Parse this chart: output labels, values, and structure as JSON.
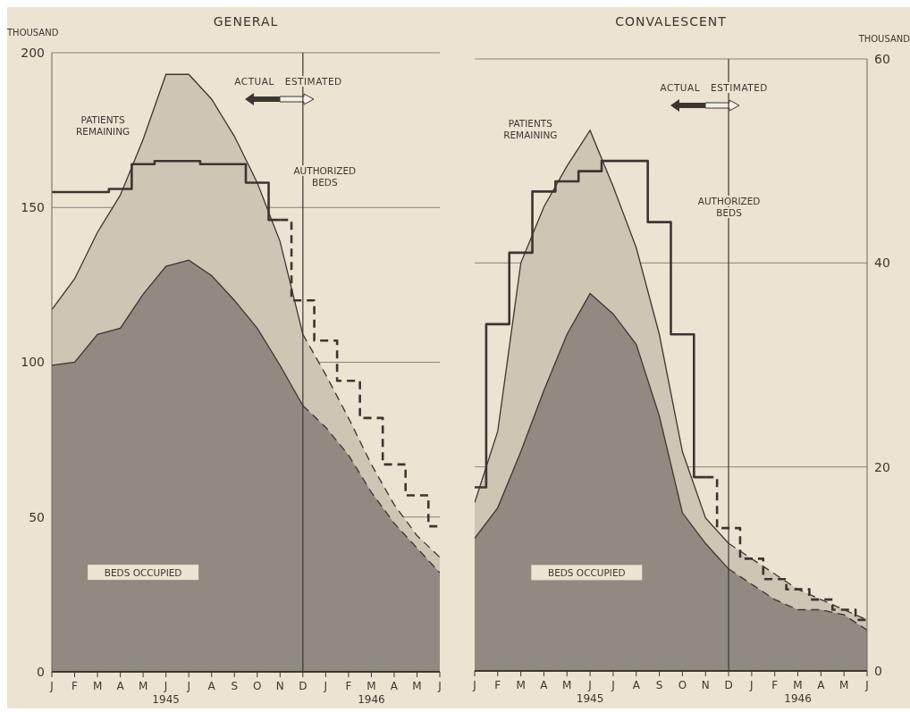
{
  "chart_data": [
    {
      "type": "area",
      "title": "GENERAL",
      "ylabel": "THOUSAND",
      "x": [
        "1945-01",
        "1945-02",
        "1945-03",
        "1945-04",
        "1945-05",
        "1945-06",
        "1945-07",
        "1945-08",
        "1945-09",
        "1945-10",
        "1945-11",
        "1945-12",
        "1946-01",
        "1946-02",
        "1946-03",
        "1946-04",
        "1946-05",
        "1946-06"
      ],
      "xlim": [
        "1945-01",
        "1946-06"
      ],
      "xticks": [
        {
          "value": "1945-01",
          "label": "J"
        },
        {
          "value": "1945-02",
          "label": "F"
        },
        {
          "value": "1945-03",
          "label": "M"
        },
        {
          "value": "1945-04",
          "label": "A"
        },
        {
          "value": "1945-05",
          "label": "M"
        },
        {
          "value": "1945-06",
          "label": "J\n1945"
        },
        {
          "value": "1945-07",
          "label": "J"
        },
        {
          "value": "1945-08",
          "label": "A"
        },
        {
          "value": "1945-09",
          "label": "S"
        },
        {
          "value": "1945-10",
          "label": "O"
        },
        {
          "value": "1945-11",
          "label": "N"
        },
        {
          "value": "1945-12",
          "label": "D"
        },
        {
          "value": "1946-01",
          "label": "J"
        },
        {
          "value": "1946-02",
          "label": "F"
        },
        {
          "value": "1946-03",
          "label": "M\n1946"
        },
        {
          "value": "1946-04",
          "label": "A"
        },
        {
          "value": "1946-05",
          "label": "M"
        },
        {
          "value": "1946-06",
          "label": "J"
        }
      ],
      "ylim": [
        0,
        200
      ],
      "yticks": [
        0,
        50,
        100,
        150,
        200
      ],
      "grid": "y",
      "ref_lines": [
        {
          "axis": "x",
          "value": "1945-12",
          "color": "#3b3631"
        }
      ],
      "annotations": [
        "ACTUAL",
        "ESTIMATED"
      ],
      "series": [
        {
          "name": "PATIENTS REMAINING",
          "color": "#cdc6b5",
          "values": [
            117,
            127,
            142,
            154,
            172,
            193,
            193,
            185,
            173,
            158,
            139,
            109,
            null,
            null,
            null,
            null,
            null,
            null
          ]
        },
        {
          "color": "#cdc6b5",
          "line_style": "dashed",
          "values": [
            null,
            null,
            null,
            null,
            null,
            null,
            null,
            null,
            null,
            null,
            null,
            109,
            96,
            82,
            67,
            54,
            44,
            37
          ]
        },
        {
          "name": "BEDS OCCUPIED",
          "color": "#908a80",
          "values": [
            99,
            100,
            109,
            111,
            122,
            131,
            133,
            128,
            120,
            111,
            99,
            86,
            null,
            null,
            null,
            null,
            null,
            null
          ]
        },
        {
          "color": "#908a80",
          "line_style": "dashed",
          "values": [
            null,
            null,
            null,
            null,
            null,
            null,
            null,
            null,
            null,
            null,
            null,
            86,
            79,
            70,
            58,
            48,
            40,
            32
          ]
        },
        {
          "name": "AUTHORIZED BEDS",
          "type": "step",
          "color": "#3b3631",
          "values": [
            155,
            155,
            155,
            156,
            164,
            165,
            165,
            164,
            164,
            158,
            146,
            null,
            null,
            null,
            null,
            null,
            null,
            null
          ]
        },
        {
          "type": "step",
          "color": "#3b3631",
          "line_style": "dashed",
          "values": [
            null,
            null,
            null,
            null,
            null,
            null,
            null,
            null,
            null,
            null,
            146,
            120,
            107,
            94,
            82,
            67,
            57,
            47
          ]
        }
      ]
    },
    {
      "type": "area",
      "title": "CONVALESCENT",
      "y2label": "THOUSAND",
      "x": [
        "1945-01",
        "1945-02",
        "1945-03",
        "1945-04",
        "1945-05",
        "1945-06",
        "1945-07",
        "1945-08",
        "1945-09",
        "1945-10",
        "1945-11",
        "1945-12",
        "1946-01",
        "1946-02",
        "1946-03",
        "1946-04",
        "1946-05",
        "1946-06"
      ],
      "xlim": [
        "1945-01",
        "1946-06"
      ],
      "xticks": [
        {
          "value": "1945-01",
          "label": "J"
        },
        {
          "value": "1945-02",
          "label": "F"
        },
        {
          "value": "1945-03",
          "label": "M"
        },
        {
          "value": "1945-04",
          "label": "A"
        },
        {
          "value": "1945-05",
          "label": "M"
        },
        {
          "value": "1945-06",
          "label": "J\n1945"
        },
        {
          "value": "1945-07",
          "label": "J"
        },
        {
          "value": "1945-08",
          "label": "A"
        },
        {
          "value": "1945-09",
          "label": "S"
        },
        {
          "value": "1945-10",
          "label": "O"
        },
        {
          "value": "1945-11",
          "label": "N"
        },
        {
          "value": "1945-12",
          "label": "D"
        },
        {
          "value": "1946-01",
          "label": "J"
        },
        {
          "value": "1946-02",
          "label": "F"
        },
        {
          "value": "1946-03",
          "label": "M\n1946"
        },
        {
          "value": "1946-04",
          "label": "A"
        },
        {
          "value": "1946-05",
          "label": "M"
        },
        {
          "value": "1946-06",
          "label": "J"
        }
      ],
      "y2lim": [
        0,
        60
      ],
      "y2ticks": [
        0,
        20,
        40,
        60
      ],
      "grid": "y",
      "ref_lines": [
        {
          "axis": "x",
          "value": "1945-12",
          "color": "#3b3631"
        }
      ],
      "annotations": [
        "ACTUAL",
        "ESTIMATED"
      ],
      "series": [
        {
          "name": "PATIENTS REMAINING",
          "axis": "y2",
          "color": "#cdc6b5",
          "values": [
            16.5,
            23.5,
            40,
            45.5,
            49.5,
            53,
            47.5,
            41.5,
            33,
            21.5,
            15,
            12.5,
            null,
            null,
            null,
            null,
            null,
            null
          ]
        },
        {
          "axis": "y2",
          "color": "#cdc6b5",
          "line_style": "dashed",
          "values": [
            null,
            null,
            null,
            null,
            null,
            null,
            null,
            null,
            null,
            null,
            null,
            12.5,
            11,
            9.5,
            8,
            7,
            6,
            5
          ]
        },
        {
          "name": "BEDS OCCUPIED",
          "axis": "y2",
          "color": "#908a80",
          "values": [
            13,
            16,
            21.5,
            27.5,
            33,
            37,
            35,
            32,
            25,
            15.5,
            12.5,
            10,
            null,
            null,
            null,
            null,
            null,
            null
          ]
        },
        {
          "axis": "y2",
          "color": "#908a80",
          "line_style": "dashed",
          "values": [
            null,
            null,
            null,
            null,
            null,
            null,
            null,
            null,
            null,
            null,
            null,
            10,
            8.5,
            7,
            6,
            6,
            5.5,
            4
          ]
        },
        {
          "name": "AUTHORIZED BEDS",
          "type": "step",
          "axis": "y2",
          "color": "#3b3631",
          "values": [
            18,
            34,
            41,
            47,
            48,
            49,
            50,
            50,
            44,
            33,
            19,
            null,
            null,
            null,
            null,
            null,
            null,
            null
          ]
        },
        {
          "type": "step",
          "axis": "y2",
          "color": "#3b3631",
          "line_style": "dashed",
          "values": [
            null,
            null,
            null,
            null,
            null,
            null,
            null,
            null,
            null,
            null,
            19,
            14,
            11,
            9,
            8,
            7,
            6,
            5
          ]
        }
      ]
    }
  ]
}
